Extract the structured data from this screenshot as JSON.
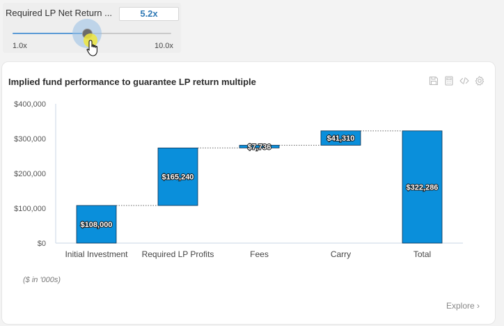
{
  "slider": {
    "title": "Required LP Net Return ...",
    "value_label": "5.2x",
    "value": 5.2,
    "min": 1.0,
    "max": 10.0,
    "min_label": "1.0x",
    "max_label": "10.0x"
  },
  "chart_card": {
    "title": "Implied fund performance to guarantee LP return multiple",
    "footnote": "($ in '000s)",
    "explore_label": "Explore",
    "explore_chevron": "›",
    "toolbar_icons": [
      "save-icon",
      "calculator-icon",
      "code-icon",
      "gear-icon"
    ]
  },
  "chart_data": {
    "type": "bar",
    "subtype": "waterfall",
    "title": "Implied fund performance to guarantee LP return multiple",
    "xlabel": "",
    "ylabel": "",
    "categories": [
      "Initial Investment",
      "Required LP Profits",
      "Fees",
      "Carry",
      "Total"
    ],
    "values": [
      108000,
      165240,
      7736,
      41310,
      322286
    ],
    "bar_bases": [
      0,
      108000,
      273240,
      280976,
      0
    ],
    "data_labels": [
      "$108,000",
      "$165,240",
      "$7,736",
      "$41,310",
      "$322,286"
    ],
    "y_ticks": [
      0,
      100000,
      200000,
      300000,
      400000
    ],
    "y_tick_labels": [
      "$0",
      "$100,000",
      "$200,000",
      "$300,000",
      "$400,000"
    ],
    "ylim": [
      0,
      400000
    ],
    "grid": false,
    "connectors": true,
    "bar_color": "#0a8fdb",
    "bar_stroke": "#0b2f4f"
  }
}
